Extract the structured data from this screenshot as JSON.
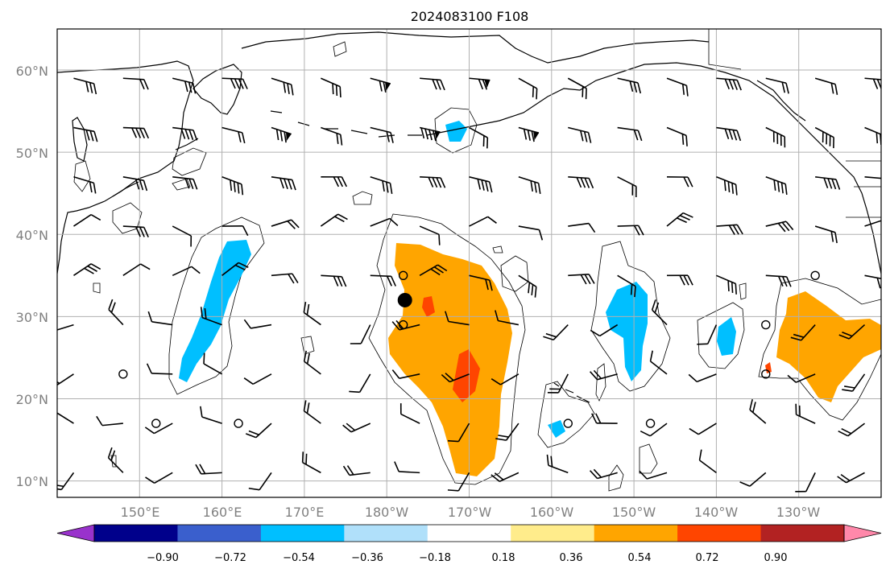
{
  "title": "2024083100 F108",
  "lat_labels": [
    "60°N",
    "50°N",
    "40°N",
    "30°N",
    "20°N",
    "10°N"
  ],
  "lon_labels": [
    "150°E",
    "160°E",
    "170°E",
    "180°W",
    "170°W",
    "160°W",
    "150°W",
    "140°W",
    "130°W"
  ],
  "colorbar": {
    "ticks": [
      "−0.90",
      "−0.72",
      "−0.54",
      "−0.36",
      "−0.18",
      "0.18",
      "0.36",
      "0.54",
      "0.72",
      "0.90"
    ],
    "colors": [
      "#9932cc",
      "#00008b",
      "#3a5fcd",
      "#00bfff",
      "#b0e0fa",
      "#ffffff",
      "#ffec8b",
      "#ffa500",
      "#ff4500",
      "#b22222",
      "#ff88aa"
    ]
  },
  "map": {
    "lon_range": [
      140,
      240
    ],
    "lat_range": [
      8,
      65
    ],
    "storm_center": {
      "lon": 182.2,
      "lat": 32
    }
  }
}
